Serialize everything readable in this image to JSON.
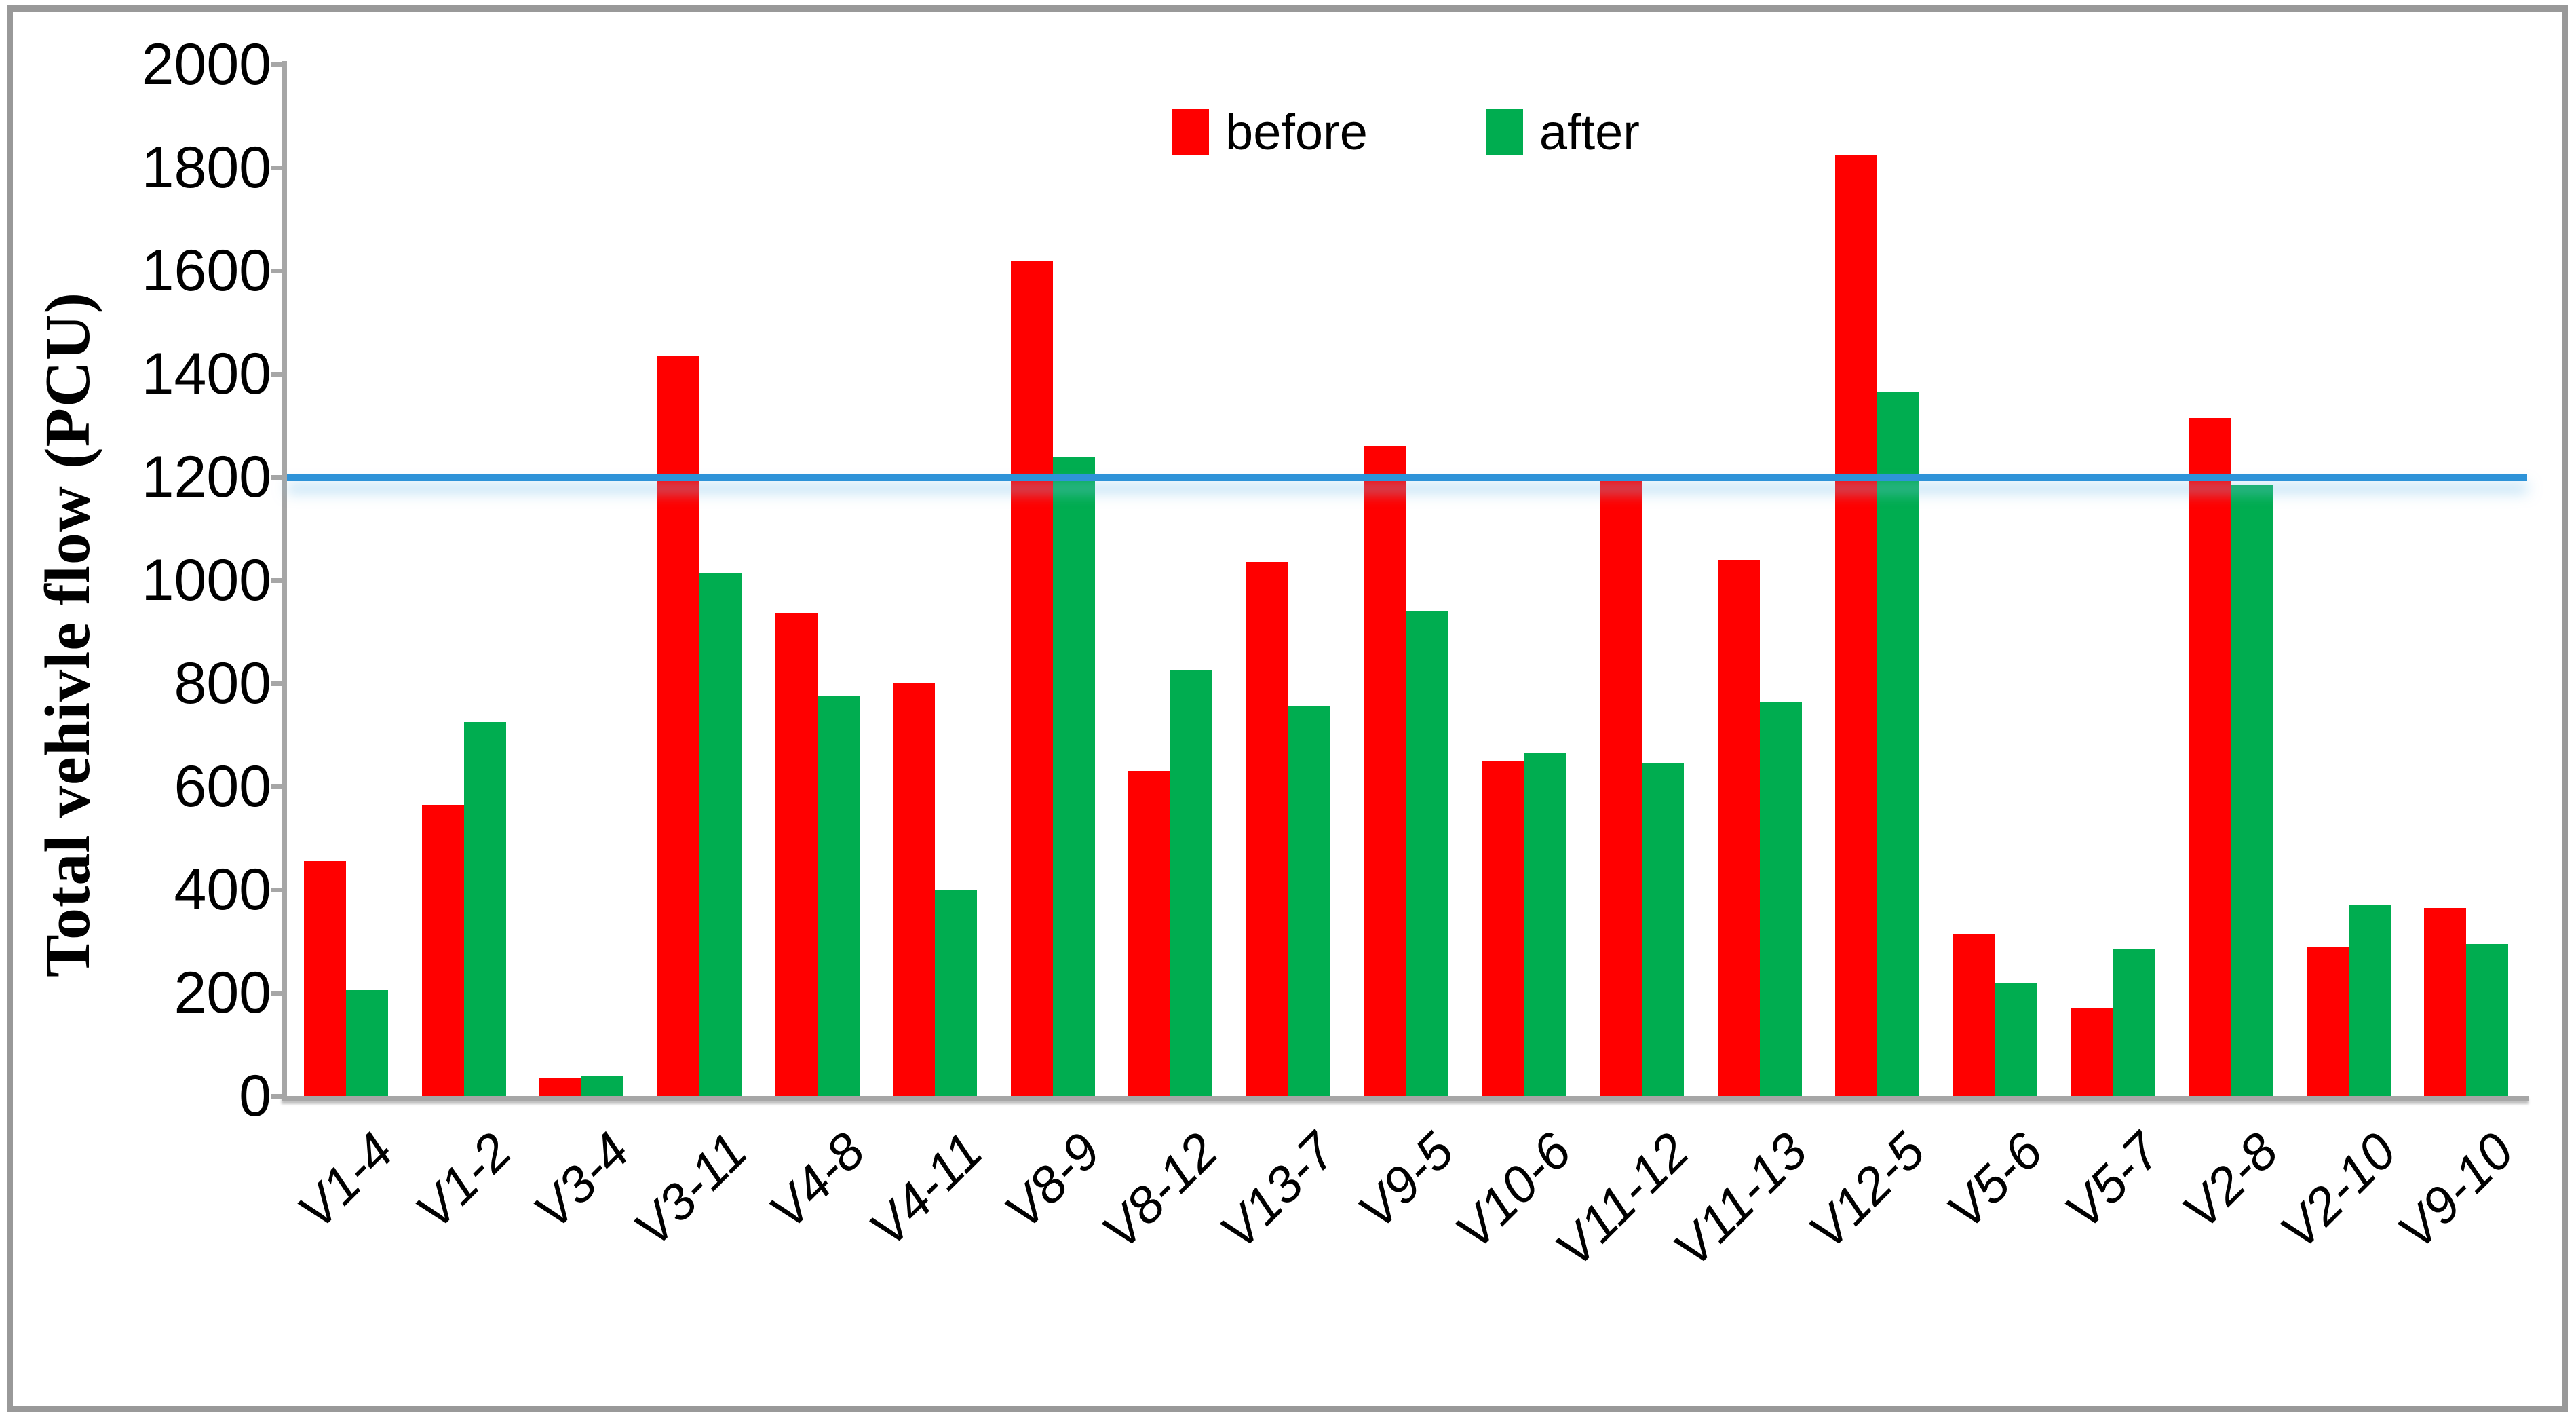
{
  "figure": {
    "kind": "excel-style clustered column chart"
  },
  "legend": {
    "before_label": "before",
    "before_color": "#ff0000",
    "after_label": "after",
    "after_color": "#00ad50"
  },
  "y_axis": {
    "title": "Total vehivle flow (PCU)",
    "ticks": [
      2000,
      1800,
      1600,
      1400,
      1200,
      1000,
      800,
      600,
      400,
      200,
      0
    ],
    "min": 0,
    "max": 2000
  },
  "reference_line": {
    "value": 1200,
    "color": "#2e93d8"
  },
  "chart_data": {
    "type": "bar",
    "title": "",
    "xlabel": "",
    "ylabel": "Total vehivle flow (PCU)",
    "ylim": [
      0,
      2000
    ],
    "grid": false,
    "legend_position": "top-center",
    "categories": [
      "V1-4",
      "V1-2",
      "V3-4",
      "V3-11",
      "V4-8",
      "V4-11",
      "V8-9",
      "V8-12",
      "V13-7",
      "V9-5",
      "V10-6",
      "V11-12",
      "V11-13",
      "V12-5",
      "V5-6",
      "V5-7",
      "V2-8",
      "V2-10",
      "V9-10"
    ],
    "series": [
      {
        "name": "before",
        "color": "#ff0000",
        "values": [
          455,
          565,
          35,
          1435,
          935,
          800,
          1620,
          630,
          1035,
          1260,
          650,
          1195,
          1040,
          1825,
          315,
          170,
          1315,
          290,
          365
        ]
      },
      {
        "name": "after",
        "color": "#00ad50",
        "values": [
          205,
          725,
          40,
          1015,
          775,
          400,
          1240,
          825,
          755,
          940,
          665,
          645,
          765,
          1365,
          220,
          285,
          1185,
          370,
          295
        ]
      }
    ],
    "reference_line": 1200
  }
}
